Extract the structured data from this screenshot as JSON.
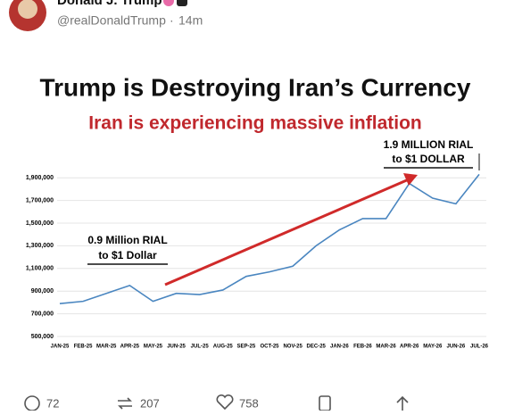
{
  "post": {
    "author": "Donald J. Trump",
    "handle": "@realDonaldTrump",
    "time": "14m"
  },
  "chart_data": {
    "type": "line",
    "title": "Trump is Destroying Iran’s Currency",
    "subtitle": "Iran is experiencing massive inflation",
    "categories": [
      "JAN-25",
      "FEB-25",
      "MAR-25",
      "APR-25",
      "MAY-25",
      "JUN-25",
      "JUL-25",
      "AUG-25",
      "SEP-25",
      "OCT-25",
      "NOV-25",
      "DEC-25",
      "JAN-26",
      "FEB-26",
      "MAR-26",
      "APR-26",
      "MAY-26",
      "JUN-26",
      "JUL-26"
    ],
    "series": [
      {
        "color": "#4a86c0",
        "values": [
          790000,
          810000,
          880000,
          950000,
          810000,
          880000,
          870000,
          910000,
          1030000,
          1070000,
          1120000,
          1300000,
          1440000,
          1540000,
          1540000,
          1850000,
          1720000,
          1670000,
          1930000
        ]
      }
    ],
    "ylim": [
      500000,
      2000000
    ],
    "yticks": [
      {
        "value": 500000,
        "label": "500,000"
      },
      {
        "value": 700000,
        "label": "700,000"
      },
      {
        "value": 900000,
        "label": "900,000"
      },
      {
        "value": 1100000,
        "label": "1,100,000"
      },
      {
        "value": 1300000,
        "label": "1,300,000"
      },
      {
        "value": 1500000,
        "label": "1,500,000"
      },
      {
        "value": 1700000,
        "label": "1,700,000"
      },
      {
        "value": 1900000,
        "label": "1,900,000"
      }
    ],
    "grid": true,
    "annotations": [
      [
        "0.9 Million RIAL",
        "to $1 Dollar"
      ],
      [
        "1.9 MILLION RIAL",
        "to $1 DOLLAR"
      ]
    ]
  },
  "actions": {
    "replies": "72",
    "reposts": "207",
    "likes": "758"
  }
}
